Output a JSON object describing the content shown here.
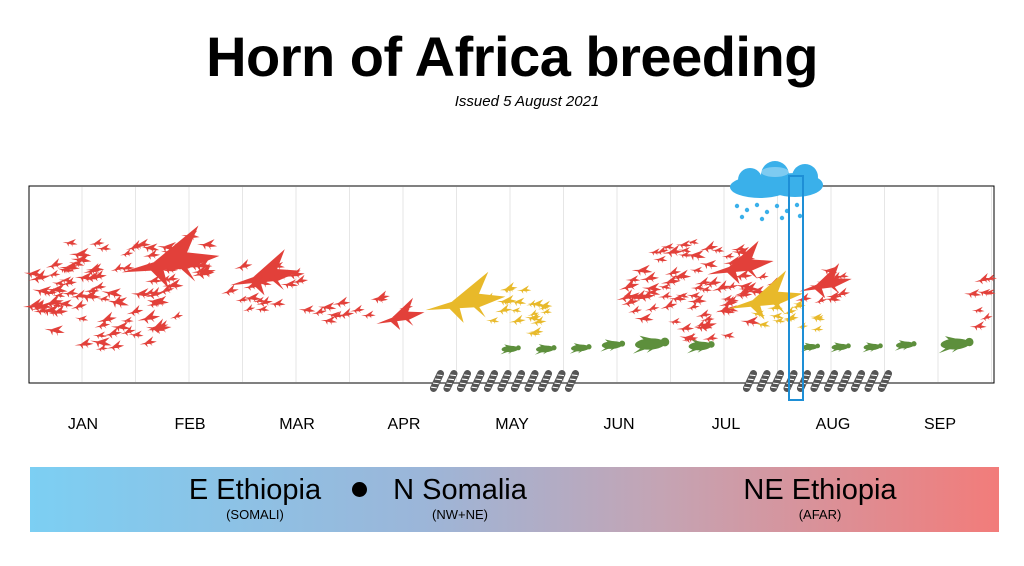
{
  "title": "Horn of Africa breeding",
  "issued": "Issued 5 August 2021",
  "months": [
    "JAN",
    "FEB",
    "MAR",
    "APR",
    "MAY",
    "JUN",
    "JUL",
    "AUG",
    "SEP"
  ],
  "regions": [
    {
      "name": "E Ethiopia",
      "sub": "(SOMALI)"
    },
    {
      "name": "N Somalia",
      "sub": "(NW+NE)"
    },
    {
      "name": "NE Ethiopia",
      "sub": "(AFAR)"
    }
  ],
  "colors": {
    "swarm": "#e2403a",
    "immature_swarm": "#e8b92a",
    "hopper": "#5d8f3c",
    "egg_pod": "#555555",
    "rain_cloud": "#2ea6e8",
    "current_marker": "#1e8fd6",
    "gradient_left": "#7ccff3",
    "gradient_right": "#f27c7a"
  },
  "icons": {
    "adult_swarm": "locust-swarm-icon",
    "immature": "immature-locust-icon",
    "hopper": "hopper-band-icon",
    "egg": "egg-pod-icon",
    "rain": "rain-cloud-icon"
  }
}
